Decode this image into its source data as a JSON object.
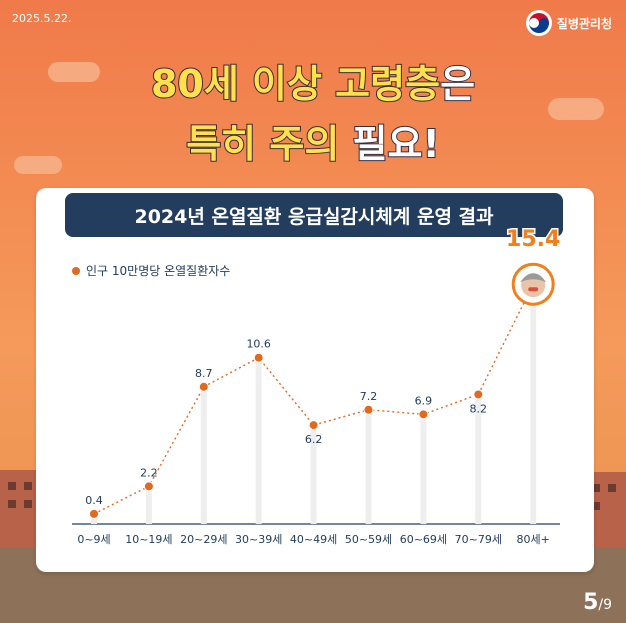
{
  "header": {
    "date": "2025.5.22.",
    "brand": "질병관리청"
  },
  "headline": {
    "line1_a": "80세 이상 고령층",
    "line1_b": "은",
    "line2_a": "특히 주의",
    "line2_b": " 필요!"
  },
  "subtitle": "2024년 온열질환 응급실감시체계 운영 결과",
  "page": {
    "current": "5",
    "total": "/9"
  },
  "colors": {
    "marker": "#e06a1e",
    "navy": "#223d5e",
    "highlight": "#f0801e"
  },
  "chart_data": {
    "type": "line",
    "categories": [
      "0~9세",
      "10~19세",
      "20~29세",
      "30~39세",
      "40~49세",
      "50~59세",
      "60~69세",
      "70~79세",
      "80세+"
    ],
    "series": [
      {
        "name": "인구 10만명당 온열질환자수",
        "values": [
          0.4,
          2.2,
          8.7,
          10.6,
          6.2,
          7.2,
          6.9,
          8.2,
          15.4
        ]
      }
    ],
    "ylim": [
      0,
      16
    ],
    "grid": false,
    "legend": "top-left"
  }
}
